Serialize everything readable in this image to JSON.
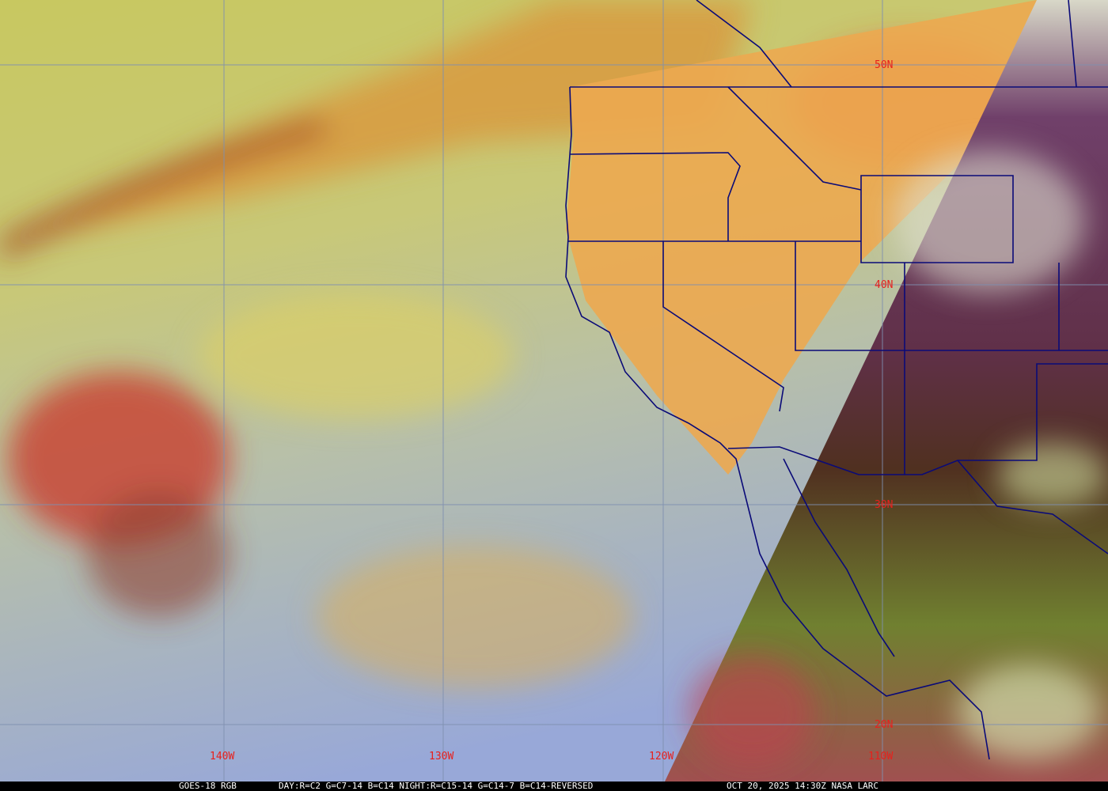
{
  "map": {
    "latitude_labels": [
      "50N",
      "40N",
      "30N",
      "20N"
    ],
    "longitude_labels": [
      "140W",
      "130W",
      "120W",
      "110W"
    ],
    "colors": {
      "grid": "#7f8fb0",
      "borders": "#0a0a78",
      "labels": "#e8201c",
      "day_ocean": "#a8c0b8",
      "day_cloud": "#e0c850",
      "land_day": "#f0a848",
      "night": "#5a3050"
    }
  },
  "caption": {
    "product": "GOES-18 RGB",
    "recipe": "DAY:R=C2 G=C7-14 B=C14 NIGHT:R=C15-14 G=C14-7 B=C14-REVERSED",
    "timestamp": "OCT 20, 2025 14:30Z NASA LARC"
  }
}
